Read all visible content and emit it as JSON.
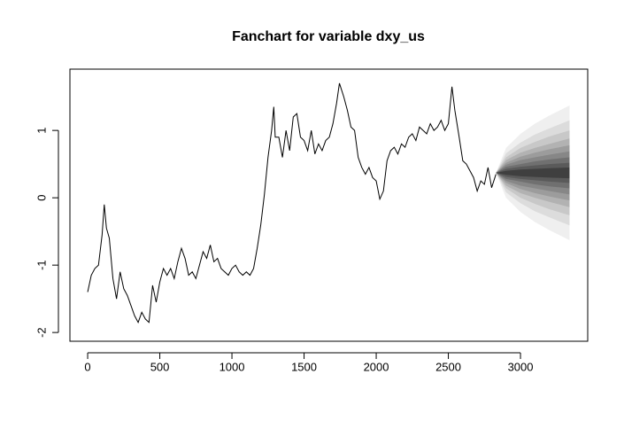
{
  "chart_data": {
    "type": "fanchart",
    "title": "Fanchart for variable dxy_us",
    "x": [
      0,
      25,
      50,
      75,
      100,
      115,
      130,
      150,
      175,
      200,
      225,
      250,
      275,
      300,
      325,
      350,
      375,
      400,
      425,
      450,
      475,
      500,
      525,
      550,
      575,
      600,
      625,
      650,
      675,
      700,
      725,
      750,
      775,
      800,
      825,
      850,
      875,
      900,
      925,
      950,
      975,
      1000,
      1025,
      1050,
      1075,
      1100,
      1125,
      1150,
      1175,
      1200,
      1225,
      1250,
      1275,
      1290,
      1300,
      1325,
      1350,
      1375,
      1400,
      1425,
      1450,
      1475,
      1500,
      1525,
      1550,
      1575,
      1600,
      1625,
      1650,
      1675,
      1700,
      1725,
      1745,
      1775,
      1800,
      1825,
      1850,
      1875,
      1900,
      1925,
      1950,
      1975,
      2000,
      2025,
      2050,
      2075,
      2100,
      2125,
      2150,
      2175,
      2200,
      2225,
      2250,
      2275,
      2300,
      2325,
      2350,
      2375,
      2400,
      2425,
      2450,
      2475,
      2500,
      2525,
      2545,
      2575,
      2600,
      2625,
      2650,
      2675,
      2700,
      2725,
      2750,
      2775,
      2800,
      2830
    ],
    "values": [
      -1.4,
      -1.15,
      -1.05,
      -1.0,
      -0.55,
      -0.1,
      -0.45,
      -0.6,
      -1.2,
      -1.5,
      -1.1,
      -1.35,
      -1.45,
      -1.6,
      -1.75,
      -1.85,
      -1.7,
      -1.8,
      -1.85,
      -1.3,
      -1.55,
      -1.25,
      -1.05,
      -1.15,
      -1.05,
      -1.2,
      -0.95,
      -0.75,
      -0.9,
      -1.15,
      -1.1,
      -1.2,
      -1.0,
      -0.8,
      -0.9,
      -0.7,
      -0.95,
      -0.9,
      -1.05,
      -1.1,
      -1.15,
      -1.05,
      -1.0,
      -1.1,
      -1.15,
      -1.1,
      -1.15,
      -1.05,
      -0.75,
      -0.4,
      0.05,
      0.6,
      1.0,
      1.35,
      0.9,
      0.9,
      0.6,
      1.0,
      0.7,
      1.2,
      1.25,
      0.9,
      0.85,
      0.7,
      1.0,
      0.65,
      0.8,
      0.7,
      0.85,
      0.9,
      1.1,
      1.4,
      1.7,
      1.5,
      1.3,
      1.05,
      1.0,
      0.6,
      0.45,
      0.35,
      0.45,
      0.3,
      0.25,
      -0.02,
      0.1,
      0.55,
      0.7,
      0.75,
      0.65,
      0.8,
      0.75,
      0.9,
      0.95,
      0.85,
      1.05,
      1.0,
      0.95,
      1.1,
      1.0,
      1.05,
      1.15,
      1.0,
      1.1,
      1.65,
      1.3,
      0.9,
      0.55,
      0.5,
      0.4,
      0.3,
      0.1,
      0.25,
      0.2,
      0.45,
      0.15,
      0.35
    ],
    "color": "#000000",
    "fan": {
      "x": [
        2830,
        2900,
        3000,
        3100,
        3200,
        3340
      ],
      "bands": [
        {
          "color": "#efefef",
          "upper": [
            0.37,
            0.74,
            0.95,
            1.1,
            1.22,
            1.37
          ],
          "lower": [
            0.37,
            0,
            -0.21,
            -0.36,
            -0.48,
            -0.63
          ]
        },
        {
          "color": "#dcdcdc",
          "upper": [
            0.37,
            0.66,
            0.82,
            0.94,
            1.03,
            1.15
          ],
          "lower": [
            0.37,
            0.08,
            -0.08,
            -0.2,
            -0.29,
            -0.41
          ]
        },
        {
          "color": "#c8c8c8",
          "upper": [
            0.37,
            0.6,
            0.74,
            0.83,
            0.91,
            1.0
          ],
          "lower": [
            0.37,
            0.14,
            0,
            -0.09,
            -0.17,
            -0.26
          ]
        },
        {
          "color": "#b2b2b2",
          "upper": [
            0.37,
            0.56,
            0.67,
            0.74,
            0.8,
            0.88
          ],
          "lower": [
            0.37,
            0.18,
            0.07,
            0,
            -0.06,
            -0.14
          ]
        },
        {
          "color": "#9c9c9c",
          "upper": [
            0.37,
            0.52,
            0.61,
            0.67,
            0.72,
            0.78
          ],
          "lower": [
            0.37,
            0.22,
            0.13,
            0.07,
            0.02,
            -0.04
          ]
        },
        {
          "color": "#878787",
          "upper": [
            0.37,
            0.49,
            0.56,
            0.6,
            0.64,
            0.69
          ],
          "lower": [
            0.37,
            0.25,
            0.18,
            0.14,
            0.1,
            0.05
          ]
        },
        {
          "color": "#707070",
          "upper": [
            0.37,
            0.46,
            0.5,
            0.54,
            0.57,
            0.6
          ],
          "lower": [
            0.37,
            0.28,
            0.24,
            0.2,
            0.17,
            0.14
          ]
        },
        {
          "color": "#5a5a5a",
          "upper": [
            0.37,
            0.43,
            0.46,
            0.48,
            0.5,
            0.52
          ],
          "lower": [
            0.37,
            0.31,
            0.28,
            0.26,
            0.24,
            0.22
          ]
        },
        {
          "color": "#3f3f3f",
          "upper": [
            0.37,
            0.4,
            0.42,
            0.43,
            0.44,
            0.45
          ],
          "lower": [
            0.37,
            0.34,
            0.32,
            0.31,
            0.3,
            0.29
          ]
        }
      ]
    },
    "xlim": [
      -123,
      3466
    ],
    "ylim": [
      -2.13,
      1.91
    ],
    "xticks": [
      0,
      500,
      1000,
      1500,
      2000,
      2500,
      3000
    ],
    "yticks": [
      -2,
      -1,
      0,
      1
    ]
  }
}
